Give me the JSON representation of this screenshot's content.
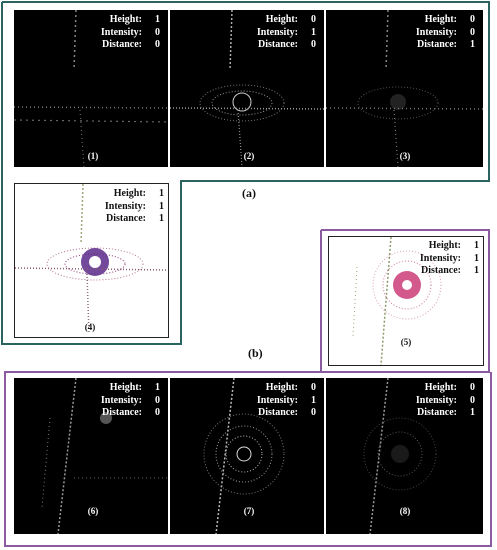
{
  "colors": {
    "teal_border": "#2a6460",
    "purple_border": "#8b5aa0"
  },
  "keys": {
    "height": "Height:",
    "intensity": "Intensity:",
    "distance": "Distance:"
  },
  "panels": [
    {
      "id": "p1",
      "label": "(1)",
      "height": "1",
      "intensity": "0",
      "distance": "0"
    },
    {
      "id": "p2",
      "label": "(2)",
      "height": "0",
      "intensity": "1",
      "distance": "0"
    },
    {
      "id": "p3",
      "label": "(3)",
      "height": "0",
      "intensity": "0",
      "distance": "1"
    },
    {
      "id": "p4",
      "label": "(4)",
      "height": "1",
      "intensity": "1",
      "distance": "1"
    },
    {
      "id": "p5",
      "label": "(5)",
      "height": "1",
      "intensity": "1",
      "distance": "1"
    },
    {
      "id": "p6",
      "label": "(6)",
      "height": "1",
      "intensity": "0",
      "distance": "0"
    },
    {
      "id": "p7",
      "label": "(7)",
      "height": "0",
      "intensity": "1",
      "distance": "0"
    },
    {
      "id": "p8",
      "label": "(8)",
      "height": "0",
      "intensity": "0",
      "distance": "1"
    }
  ],
  "group_labels": {
    "a": "(a)",
    "b": "(b)"
  }
}
